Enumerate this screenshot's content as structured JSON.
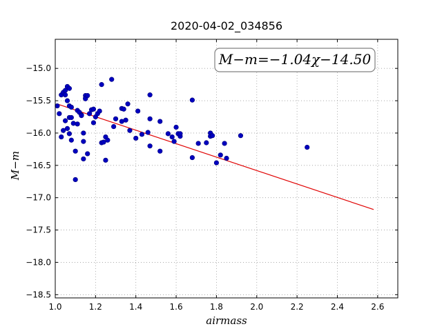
{
  "chart_data": {
    "type": "scatter",
    "title": "2020-04-02_034856",
    "xlabel": "airmass",
    "ylabel": "M−m",
    "xlim": [
      1.0,
      2.7
    ],
    "ylim": [
      -18.55,
      -14.55
    ],
    "y_inverted": true,
    "grid": true,
    "xticks": [
      1.0,
      1.2,
      1.4,
      1.6,
      1.8,
      2.0,
      2.2,
      2.4,
      2.6
    ],
    "xtick_labels": [
      "1.0",
      "1.2",
      "1.4",
      "1.6",
      "1.8",
      "2.0",
      "2.2",
      "2.4",
      "2.6"
    ],
    "yticks": [
      -15.0,
      -15.5,
      -16.0,
      -16.5,
      -17.0,
      -17.5,
      -18.0,
      -18.5
    ],
    "ytick_labels": [
      "−15.0",
      "−15.5",
      "−16.0",
      "−16.5",
      "−17.0",
      "−17.5",
      "−18.0",
      "−18.5"
    ],
    "annotation": "M−m=−1.04χ−14.50",
    "colors": {
      "points": "#0000bf",
      "fit": "#e00000",
      "grid": "#9a9a9a"
    },
    "fit": {
      "slope": -1.04,
      "intercept": -14.5,
      "x_range": [
        1.01,
        2.58
      ]
    },
    "points": [
      [
        1.01,
        -15.58
      ],
      [
        1.02,
        -15.7
      ],
      [
        1.03,
        -15.41
      ],
      [
        1.03,
        -16.06
      ],
      [
        1.04,
        -15.96
      ],
      [
        1.04,
        -15.37
      ],
      [
        1.05,
        -15.41
      ],
      [
        1.05,
        -15.34
      ],
      [
        1.05,
        -15.81
      ],
      [
        1.06,
        -15.93
      ],
      [
        1.06,
        -15.28
      ],
      [
        1.06,
        -15.5
      ],
      [
        1.07,
        -15.76
      ],
      [
        1.07,
        -16.01
      ],
      [
        1.07,
        -15.31
      ],
      [
        1.07,
        -15.58
      ],
      [
        1.08,
        -15.76
      ],
      [
        1.08,
        -15.6
      ],
      [
        1.08,
        -16.11
      ],
      [
        1.09,
        -15.85
      ],
      [
        1.1,
        -16.28
      ],
      [
        1.1,
        -16.72
      ],
      [
        1.11,
        -15.86
      ],
      [
        1.11,
        -15.65
      ],
      [
        1.12,
        -15.68
      ],
      [
        1.13,
        -15.72
      ],
      [
        1.13,
        -15.73
      ],
      [
        1.14,
        -16.0
      ],
      [
        1.14,
        -16.13
      ],
      [
        1.14,
        -16.4
      ],
      [
        1.15,
        -15.42
      ],
      [
        1.15,
        -15.46
      ],
      [
        1.15,
        -15.47
      ],
      [
        1.16,
        -16.32
      ],
      [
        1.16,
        -15.42
      ],
      [
        1.17,
        -15.7
      ],
      [
        1.18,
        -15.64
      ],
      [
        1.19,
        -15.63
      ],
      [
        1.19,
        -15.84
      ],
      [
        1.2,
        -15.75
      ],
      [
        1.21,
        -15.7
      ],
      [
        1.22,
        -15.66
      ],
      [
        1.23,
        -16.15
      ],
      [
        1.23,
        -15.25
      ],
      [
        1.24,
        -16.14
      ],
      [
        1.25,
        -16.42
      ],
      [
        1.25,
        -16.06
      ],
      [
        1.26,
        -16.11
      ],
      [
        1.28,
        -15.17
      ],
      [
        1.29,
        -15.9
      ],
      [
        1.3,
        -15.78
      ],
      [
        1.33,
        -15.82
      ],
      [
        1.33,
        -15.62
      ],
      [
        1.34,
        -15.63
      ],
      [
        1.35,
        -15.8
      ],
      [
        1.36,
        -15.55
      ],
      [
        1.37,
        -15.96
      ],
      [
        1.4,
        -16.08
      ],
      [
        1.41,
        -15.66
      ],
      [
        1.43,
        -16.02
      ],
      [
        1.46,
        -15.99
      ],
      [
        1.47,
        -15.41
      ],
      [
        1.47,
        -16.2
      ],
      [
        1.47,
        -15.78
      ],
      [
        1.52,
        -15.82
      ],
      [
        1.52,
        -16.28
      ],
      [
        1.56,
        -16.01
      ],
      [
        1.58,
        -16.06
      ],
      [
        1.59,
        -16.13
      ],
      [
        1.6,
        -15.91
      ],
      [
        1.61,
        -16.01
      ],
      [
        1.62,
        -16.05
      ],
      [
        1.62,
        -16.01
      ],
      [
        1.68,
        -15.49
      ],
      [
        1.68,
        -16.38
      ],
      [
        1.71,
        -16.16
      ],
      [
        1.75,
        -16.15
      ],
      [
        1.77,
        -16.0
      ],
      [
        1.77,
        -16.05
      ],
      [
        1.78,
        -16.04
      ],
      [
        1.8,
        -16.46
      ],
      [
        1.82,
        -16.34
      ],
      [
        1.84,
        -16.16
      ],
      [
        1.85,
        -16.39
      ],
      [
        1.92,
        -16.04
      ],
      [
        2.25,
        -16.22
      ]
    ]
  }
}
